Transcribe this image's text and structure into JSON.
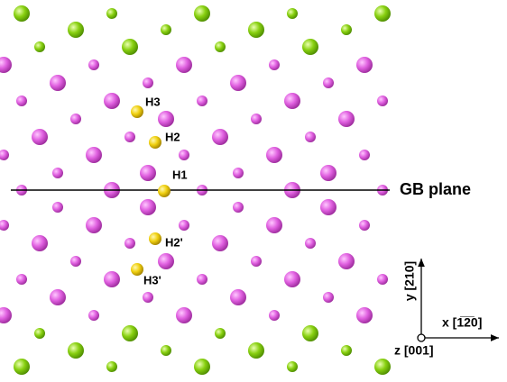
{
  "atoms": {
    "H3": "H3",
    "H2": "H2",
    "H1": "H1",
    "H2p": "H2'",
    "H3p": "H3'"
  },
  "gb_plane": "GB plane",
  "axes": {
    "y": "y [210]",
    "x": "x [1̅2̅0]",
    "z": "z [001]"
  }
}
